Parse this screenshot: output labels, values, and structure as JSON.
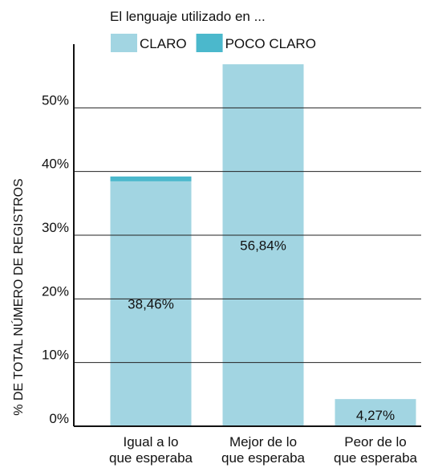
{
  "chart_data": {
    "type": "stacked_bar",
    "title": "El lenguaje utilizado en ...",
    "y_label": "% DE TOTAL NÚMERO DE REGISTROS",
    "categories": [
      "Igual a lo\nque esperaba",
      "Mejor de lo\nque esperaba",
      "Peor de lo\nque esperaba"
    ],
    "series": [
      {
        "name": "CLARO",
        "color": "#a2d5e2",
        "values": [
          38.46,
          56.84,
          4.27
        ],
        "value_labels": [
          "38,46%",
          "56,84%",
          "4,27%"
        ]
      },
      {
        "name": "POCO CLARO",
        "color": "#4bb8cc",
        "values": [
          0.76,
          0,
          0
        ]
      }
    ],
    "ylim": [
      0,
      60
    ],
    "yticks": [
      {
        "value": 0,
        "label": "0%"
      },
      {
        "value": 10,
        "label": "10%"
      },
      {
        "value": 20,
        "label": "20%"
      },
      {
        "value": 30,
        "label": "30%"
      },
      {
        "value": 40,
        "label": "40%"
      },
      {
        "value": 50,
        "label": "50%"
      }
    ],
    "grid": true
  }
}
